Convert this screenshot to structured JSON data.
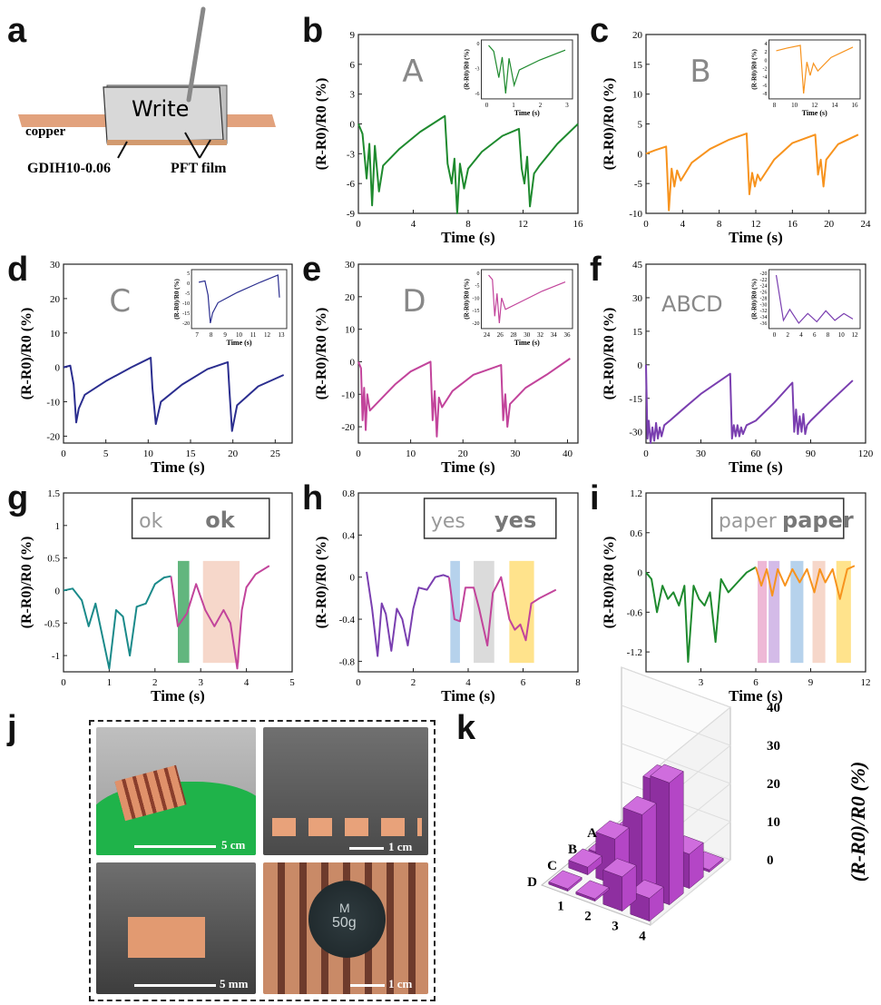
{
  "panels": {
    "a": "a",
    "b": "b",
    "c": "c",
    "d": "d",
    "e": "e",
    "f": "f",
    "g": "g",
    "h": "h",
    "i": "i",
    "j": "j",
    "k": "k"
  },
  "schematic": {
    "write": "Write",
    "copper": "copper",
    "gdih": "GDIH10-0.06",
    "pft": "PFT film"
  },
  "photos": {
    "scale_1": "5 cm",
    "scale_2": "1 cm",
    "scale_3": "5 mm",
    "scale_4": "1 cm",
    "weight_top": "M",
    "weight_bottom": "50g"
  },
  "colors": {
    "green": "#1e8a2e",
    "orange": "#f7931e",
    "navy": "#2b2e8f",
    "magenta": "#c2449b",
    "purple": "#7a3fb0",
    "teal": "#1a8a8a",
    "bar": "#a43bb5"
  },
  "chart_data": [
    {
      "id": "b",
      "type": "line",
      "letter": "A",
      "xlabel": "Time (s)",
      "ylabel": "(R-R0)/R0 (%)",
      "xlim": [
        0,
        16
      ],
      "ylim": [
        -9,
        9
      ],
      "xticks": [
        0,
        4,
        8,
        12,
        16
      ],
      "yticks": [
        -9,
        -6,
        -3,
        0,
        3,
        6,
        9
      ],
      "series": [
        {
          "color": "#1e8a2e",
          "x": [
            0,
            0.3,
            0.6,
            0.8,
            1.0,
            1.2,
            1.5,
            1.8,
            3,
            4.5,
            6.3,
            6.5,
            6.8,
            7.0,
            7.2,
            7.4,
            7.7,
            8,
            9,
            10.5,
            11.7,
            11.9,
            12.1,
            12.3,
            12.5,
            12.8,
            13.2,
            14.5,
            16
          ],
          "y": [
            0,
            -1,
            -5.5,
            -2,
            -8.2,
            -2.2,
            -6.8,
            -4.2,
            -2.5,
            -0.8,
            0.8,
            -4,
            -6,
            -3.5,
            -9,
            -4,
            -6.5,
            -4.5,
            -2.8,
            -1.2,
            -0.5,
            -4.5,
            -6,
            -3.3,
            -8.3,
            -5,
            -4.2,
            -2,
            0
          ]
        }
      ],
      "inset": {
        "xlabel": "Time (s)",
        "ylabel": "(R-R0)/R0 (%)",
        "xticks": [
          0,
          1,
          2,
          3
        ],
        "yticks": [
          0,
          -3,
          -6
        ]
      }
    },
    {
      "id": "c",
      "type": "line",
      "letter": "B",
      "xlabel": "Time (s)",
      "ylabel": "(R-R0)/R0 (%)",
      "xlim": [
        0,
        24
      ],
      "ylim": [
        -10,
        20
      ],
      "xticks": [
        0,
        4,
        8,
        12,
        16,
        20,
        24
      ],
      "yticks": [
        -10,
        -5,
        0,
        5,
        10,
        15,
        20
      ],
      "series": [
        {
          "color": "#f7931e",
          "x": [
            0,
            1,
            2.2,
            2.5,
            2.8,
            3.1,
            3.4,
            3.8,
            5,
            7,
            9,
            11,
            11.3,
            11.6,
            11.9,
            12.2,
            12.5,
            14,
            16,
            18.5,
            18.8,
            19.1,
            19.4,
            19.7,
            21,
            23.2
          ],
          "y": [
            0,
            0.6,
            1.2,
            -9.5,
            -2.5,
            -5.5,
            -2.8,
            -4.5,
            -1.5,
            0.8,
            2.3,
            3.4,
            -6.8,
            -3.2,
            -5.5,
            -3.5,
            -4.5,
            -1,
            1.8,
            3.2,
            -3.5,
            -1,
            -5.5,
            -1,
            1.6,
            3.2
          ]
        }
      ],
      "inset": {
        "xlabel": "Time (s)",
        "ylabel": "(R-R0)/R0 (%)",
        "xticks": [
          8,
          10,
          12,
          14,
          16
        ],
        "yticks": [
          4,
          2,
          0,
          -2,
          -4,
          -6,
          -8
        ]
      }
    },
    {
      "id": "d",
      "type": "line",
      "letter": "C",
      "xlabel": "Time (s)",
      "ylabel": "(R-R0)/R0 (%)",
      "xlim": [
        0,
        27
      ],
      "ylim": [
        -22,
        30
      ],
      "xticks": [
        0,
        5,
        10,
        15,
        20,
        25
      ],
      "yticks": [
        -20,
        -10,
        0,
        10,
        20,
        30
      ],
      "series": [
        {
          "color": "#2b2e8f",
          "x": [
            0,
            0.8,
            1.2,
            1.5,
            1.8,
            2.5,
            5,
            8,
            10.3,
            10.5,
            10.9,
            11.5,
            14,
            17,
            19.4,
            19.6,
            19.9,
            20.5,
            23,
            26
          ],
          "y": [
            0,
            0.5,
            -5,
            -16,
            -12,
            -8,
            -4,
            0,
            2.8,
            -6,
            -16.5,
            -10,
            -5,
            -0.5,
            1.5,
            -7,
            -18.5,
            -11,
            -5.5,
            -2.2
          ]
        }
      ],
      "inset": {
        "xlabel": "Time (s)",
        "ylabel": "(R-R0)/R0 (%)",
        "xticks": [
          7,
          8,
          9,
          10,
          11,
          12,
          13
        ],
        "yticks": [
          5,
          0,
          -5,
          -10,
          -15,
          -20
        ]
      }
    },
    {
      "id": "e",
      "type": "line",
      "letter": "D",
      "xlabel": "Time (s)",
      "ylabel": "(R-R0)/R0 (%)",
      "xlim": [
        0,
        42
      ],
      "ylim": [
        -25,
        30
      ],
      "xticks": [
        0,
        10,
        20,
        30,
        40
      ],
      "yticks": [
        -20,
        -10,
        0,
        10,
        20,
        30
      ],
      "series": [
        {
          "color": "#c2449b",
          "x": [
            0,
            0.5,
            0.8,
            1.1,
            1.4,
            1.7,
            2.2,
            4,
            7,
            10,
            13.8,
            14.2,
            14.6,
            15,
            15.4,
            16,
            18,
            22,
            27.3,
            27.7,
            28.1,
            28.5,
            29,
            32,
            36,
            40.5
          ],
          "y": [
            0,
            -2,
            -18,
            -8,
            -21,
            -10,
            -15,
            -12,
            -7,
            -3,
            0,
            -18,
            -9,
            -23,
            -11,
            -14,
            -9,
            -4,
            -1,
            -18,
            -10,
            -20,
            -13,
            -8,
            -4,
            1
          ]
        }
      ],
      "inset": {
        "xlabel": "Time (s)",
        "ylabel": "(R-R0)/R0 (%)",
        "xticks": [
          24,
          26,
          28,
          30,
          32,
          34,
          36
        ],
        "yticks": [
          0,
          -5,
          -10,
          -15,
          -20
        ]
      }
    },
    {
      "id": "f",
      "type": "line",
      "letter": "ABCD",
      "xlabel": "Time (s)",
      "ylabel": "(R-R0)/R0 (%)",
      "xlim": [
        0,
        120
      ],
      "ylim": [
        -35,
        45
      ],
      "xticks": [
        0,
        30,
        60,
        90,
        120
      ],
      "yticks": [
        -30,
        -15,
        0,
        15,
        30,
        45
      ],
      "series": [
        {
          "color": "#7a3fb0",
          "x": [
            0,
            0.8,
            1.5,
            2.5,
            3.5,
            4.5,
            5.5,
            6.5,
            7.5,
            8.5,
            10,
            13,
            20,
            30,
            46,
            47,
            48,
            49,
            50,
            51,
            52,
            53,
            55,
            60,
            70,
            80,
            81,
            82,
            83,
            84,
            85,
            86,
            87,
            88,
            90,
            100,
            113
          ],
          "y": [
            0,
            -33,
            -25,
            -35,
            -28,
            -34,
            -26,
            -33,
            -28,
            -32,
            -27,
            -25,
            -20,
            -13,
            -4,
            -33,
            -27,
            -32,
            -27,
            -32,
            -28,
            -31,
            -27,
            -25,
            -17,
            -8,
            -30,
            -20,
            -31,
            -23,
            -30,
            -22,
            -31,
            -27,
            -25,
            -17,
            -7
          ]
        }
      ],
      "inset": {
        "xlabel": "",
        "ylabel": "(R-R0)/R0 (%)",
        "xticks": [
          0,
          2,
          4,
          6,
          8,
          10,
          12
        ],
        "yticks": [
          -20,
          -22,
          -24,
          -26,
          -28,
          -30,
          -32,
          -34,
          -36
        ]
      }
    },
    {
      "id": "g",
      "type": "line",
      "letter": "ok",
      "xlabel": "Time (s)",
      "ylabel": "(R-R0)/R0 (%)",
      "xlim": [
        0,
        5
      ],
      "ylim": [
        -1.25,
        1.5
      ],
      "xticks": [
        0,
        1,
        2,
        3,
        4,
        5
      ],
      "yticks": [
        -1.0,
        -0.5,
        0.0,
        0.5,
        1.0,
        1.5
      ],
      "series": [
        {
          "color": "#1a8a8a",
          "x": [
            0,
            0.2,
            0.4,
            0.55,
            0.7,
            0.85,
            1.0,
            1.15,
            1.3,
            1.45,
            1.6,
            1.8,
            2.0,
            2.2,
            2.35
          ],
          "y": [
            0,
            0.03,
            -0.15,
            -0.55,
            -0.2,
            -0.7,
            -1.2,
            -0.3,
            -0.4,
            -1.0,
            -0.25,
            -0.2,
            0.1,
            0.2,
            0.22
          ]
        },
        {
          "color": "#c2449b",
          "x": [
            2.35,
            2.5,
            2.7,
            2.9,
            3.1,
            3.3,
            3.5,
            3.65,
            3.8,
            3.9,
            4.0,
            4.2,
            4.5
          ],
          "y": [
            0.22,
            -0.55,
            -0.35,
            0.1,
            -0.3,
            -0.55,
            -0.3,
            -0.5,
            -1.2,
            -0.3,
            0.05,
            0.25,
            0.38
          ]
        }
      ],
      "highlights": [
        {
          "x": [
            2.5,
            2.75
          ],
          "color": "#2e9d53"
        },
        {
          "x": [
            3.05,
            3.85
          ],
          "color": "#f3c9b8"
        }
      ]
    },
    {
      "id": "h",
      "type": "line",
      "letter": "yes",
      "xlabel": "Time (s)",
      "ylabel": "(R-R0)/R0 (%)",
      "xlim": [
        0,
        8
      ],
      "ylim": [
        -0.9,
        0.8
      ],
      "xticks": [
        0,
        2,
        4,
        6,
        8
      ],
      "yticks": [
        -0.8,
        -0.4,
        0.0,
        0.4,
        0.8
      ],
      "series": [
        {
          "color": "#7a3fb0",
          "x": [
            0.3,
            0.5,
            0.7,
            0.85,
            1.0,
            1.2,
            1.4,
            1.6,
            1.8,
            2.0,
            2.2,
            2.5,
            2.8,
            3.1,
            3.3
          ],
          "y": [
            0.05,
            -0.3,
            -0.75,
            -0.25,
            -0.35,
            -0.7,
            -0.3,
            -0.4,
            -0.65,
            -0.3,
            -0.1,
            -0.12,
            0,
            0.02,
            0.0
          ]
        },
        {
          "color": "#c2449b",
          "x": [
            3.3,
            3.5,
            3.7,
            3.9,
            4.2,
            4.4,
            4.7,
            4.9,
            5.2,
            5.5,
            5.7,
            5.9,
            6.1,
            6.3,
            6.6,
            7.2
          ],
          "y": [
            0.0,
            -0.4,
            -0.42,
            -0.1,
            -0.1,
            -0.3,
            -0.65,
            -0.15,
            0.0,
            -0.4,
            -0.5,
            -0.45,
            -0.6,
            -0.25,
            -0.2,
            -0.12
          ]
        }
      ],
      "highlights": [
        {
          "x": [
            3.35,
            3.7
          ],
          "color": "#9dc3e6"
        },
        {
          "x": [
            4.2,
            4.95
          ],
          "color": "#cfcfcf"
        },
        {
          "x": [
            5.5,
            6.4
          ],
          "color": "#ffd966"
        }
      ]
    },
    {
      "id": "i",
      "type": "line",
      "letter": "paper",
      "xlabel": "Time (s)",
      "ylabel": "(R-R0)/R0 (%)",
      "xlim": [
        0,
        12
      ],
      "ylim": [
        -1.5,
        1.2
      ],
      "xticks": [
        0,
        3,
        6,
        9,
        12
      ],
      "yticks": [
        -1.2,
        -0.6,
        0.0,
        0.6,
        1.2
      ],
      "series": [
        {
          "color": "#1e8a2e",
          "x": [
            0,
            0.3,
            0.6,
            0.9,
            1.2,
            1.5,
            1.8,
            2.1,
            2.3,
            2.6,
            2.9,
            3.2,
            3.5,
            3.8,
            4.1,
            4.5,
            5,
            5.5,
            6
          ],
          "y": [
            0,
            -0.1,
            -0.6,
            -0.2,
            -0.4,
            -0.3,
            -0.5,
            -0.2,
            -1.35,
            -0.2,
            -0.4,
            -0.5,
            -0.3,
            -1.05,
            -0.1,
            -0.3,
            -0.15,
            0.0,
            0.08
          ]
        },
        {
          "color": "#f7931e",
          "x": [
            6,
            6.3,
            6.6,
            6.9,
            7.2,
            7.6,
            8.0,
            8.4,
            8.8,
            9.2,
            9.5,
            9.8,
            10.2,
            10.6,
            11,
            11.4
          ],
          "y": [
            0.08,
            -0.2,
            0.05,
            -0.35,
            0.05,
            -0.2,
            0.05,
            -0.15,
            0.05,
            -0.3,
            0.05,
            -0.15,
            0.05,
            -0.4,
            0.05,
            0.1
          ]
        }
      ],
      "highlights": [
        {
          "x": [
            6.1,
            6.6
          ],
          "color": "#e8a0c8"
        },
        {
          "x": [
            6.7,
            7.3
          ],
          "color": "#c6a4e0"
        },
        {
          "x": [
            7.9,
            8.6
          ],
          "color": "#9dc3e6"
        },
        {
          "x": [
            9.1,
            9.8
          ],
          "color": "#f3c9b8"
        },
        {
          "x": [
            10.4,
            11.2
          ],
          "color": "#ffd966"
        }
      ]
    },
    {
      "id": "k",
      "type": "bar",
      "ylabel": "(R-R0)/R0 (%)",
      "rows": [
        "A",
        "B",
        "C",
        "D"
      ],
      "cols": [
        "1",
        "2",
        "3",
        "4"
      ],
      "zticks": [
        0,
        10,
        20,
        30,
        40
      ],
      "values": [
        [
          0,
          0,
          0,
          0
        ],
        [
          0,
          4,
          25,
          9
        ],
        [
          2,
          12,
          21,
          32
        ],
        [
          0,
          0,
          9,
          6
        ]
      ]
    }
  ]
}
